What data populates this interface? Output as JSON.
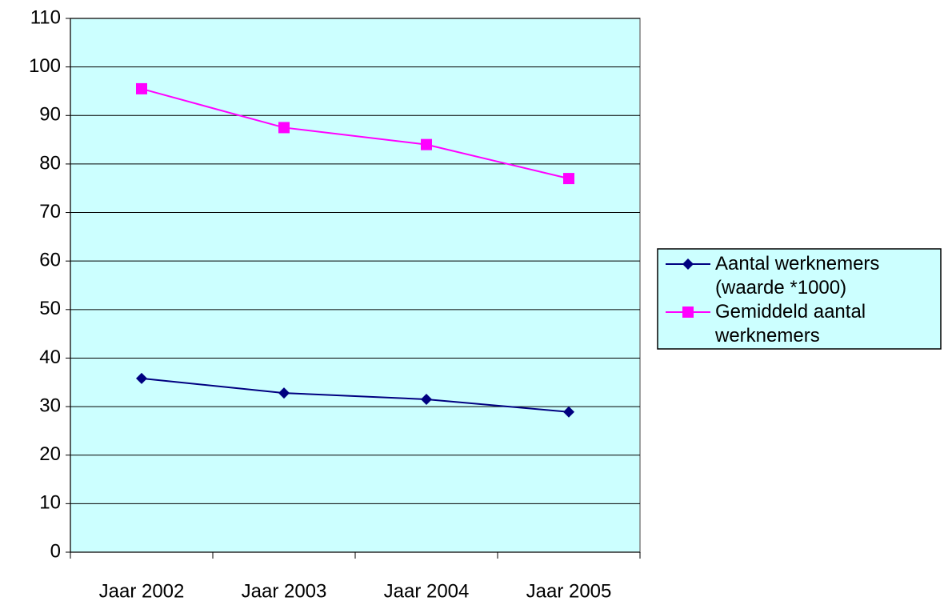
{
  "chart_data": {
    "type": "line",
    "categories": [
      "Jaar 2002",
      "Jaar 2003",
      "Jaar 2004",
      "Jaar 2005"
    ],
    "series": [
      {
        "name": "Aantal werknemers (waarde *1000)",
        "color": "#000080",
        "marker": "diamond",
        "values": [
          35.8,
          32.8,
          31.5,
          28.9
        ]
      },
      {
        "name": "Gemiddeld aantal werknemers",
        "color": "#ff00ff",
        "marker": "square",
        "values": [
          95.5,
          87.5,
          84,
          77
        ]
      }
    ],
    "ylim": [
      0,
      110
    ],
    "yticks": [
      0,
      10,
      20,
      30,
      40,
      50,
      60,
      70,
      80,
      90,
      100,
      110
    ],
    "grid": true,
    "legend": "right",
    "plot_background": "#ccffff"
  }
}
